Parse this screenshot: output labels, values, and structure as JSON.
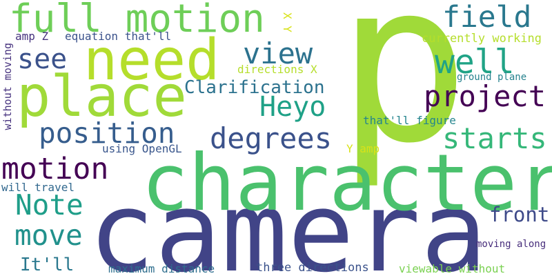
{
  "background": "#ffffff",
  "palette": {
    "lime": "#b5de2b",
    "yellow_green": "#a0da39",
    "light_green": "#6ece58",
    "green": "#4ac16d",
    "teal_green": "#1fa187",
    "teal": "#21918c",
    "teal_blue": "#277f8e",
    "blue": "#365d8d",
    "blue_purple": "#3b528b",
    "indigo": "#414487",
    "dark_purple": "#46327e",
    "purple": "#440154",
    "yellow": "#d8e219"
  },
  "words": [
    {
      "text": "p",
      "color": "#a0da39"
    },
    {
      "text": "camera",
      "color": "#414487"
    },
    {
      "text": "character",
      "color": "#4ac16d"
    },
    {
      "text": "need",
      "color": "#b5de2b"
    },
    {
      "text": "place",
      "color": "#a0da39"
    },
    {
      "text": "full motion",
      "color": "#6ece58"
    },
    {
      "text": "field",
      "color": "#2a788e"
    },
    {
      "text": "well",
      "color": "#20a386"
    },
    {
      "text": "view",
      "color": "#2c728e"
    },
    {
      "text": "project",
      "color": "#440154"
    },
    {
      "text": "see",
      "color": "#3b528b"
    },
    {
      "text": "Clarification",
      "color": "#2c728e"
    },
    {
      "text": "Heyo",
      "color": "#1fa187"
    },
    {
      "text": "position",
      "color": "#365d8d"
    },
    {
      "text": "degrees",
      "color": "#3b528b"
    },
    {
      "text": "starts",
      "color": "#35b779"
    },
    {
      "text": "motion",
      "color": "#440154"
    },
    {
      "text": "Note",
      "color": "#1f9e89"
    },
    {
      "text": "move",
      "color": "#21918c"
    },
    {
      "text": "front",
      "color": "#3e4a89"
    },
    {
      "text": "It'll",
      "color": "#2a788e"
    },
    {
      "text": "currently working",
      "color": "#b5de2b"
    },
    {
      "text": "ground plane",
      "color": "#26828e"
    },
    {
      "text": "amp Z",
      "color": "#46327e"
    },
    {
      "text": "equation that'll",
      "color": "#3b528b"
    },
    {
      "text": "directions X",
      "color": "#b5de2b"
    },
    {
      "text": "that'll figure",
      "color": "#25858e"
    },
    {
      "text": "using OpenGL",
      "color": "#39568c"
    },
    {
      "text": "Y amp",
      "color": "#d8e219"
    },
    {
      "text": "will travel",
      "color": "#31688e"
    },
    {
      "text": "moving along",
      "color": "#472d7b"
    },
    {
      "text": "maximum distance",
      "color": "#2e6e8e"
    },
    {
      "text": "three directions",
      "color": "#3b528b"
    },
    {
      "text": "viewable without",
      "color": "#7ad151"
    },
    {
      "text": "without moving",
      "color": "#46327e"
    },
    {
      "text": "X Y",
      "color": "#d8e219"
    }
  ]
}
